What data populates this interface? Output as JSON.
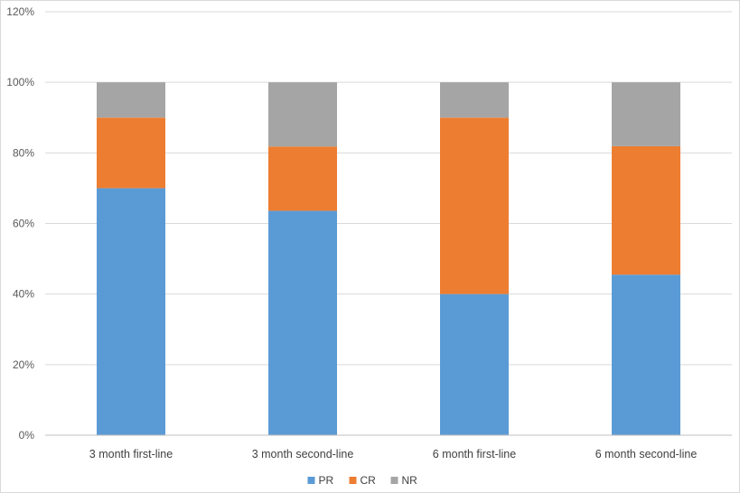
{
  "chart_data": {
    "type": "bar",
    "stacked": true,
    "categories": [
      "3 month first-line",
      "3 month second-line",
      "6 month first-line",
      "6 month second-line"
    ],
    "series": [
      {
        "name": "PR",
        "color": "#5B9BD5",
        "values": [
          70,
          63.6,
          40,
          45.5
        ]
      },
      {
        "name": "CR",
        "color": "#ED7D31",
        "values": [
          20,
          18.2,
          50,
          36.4
        ]
      },
      {
        "name": "NR",
        "color": "#A5A5A5",
        "values": [
          10,
          18.2,
          10,
          18.1
        ]
      }
    ],
    "ylim": [
      0,
      120
    ],
    "yticks": [
      "0%",
      "20%",
      "40%",
      "60%",
      "80%",
      "100%",
      "120%"
    ],
    "grid": true,
    "legend_position": "bottom"
  }
}
